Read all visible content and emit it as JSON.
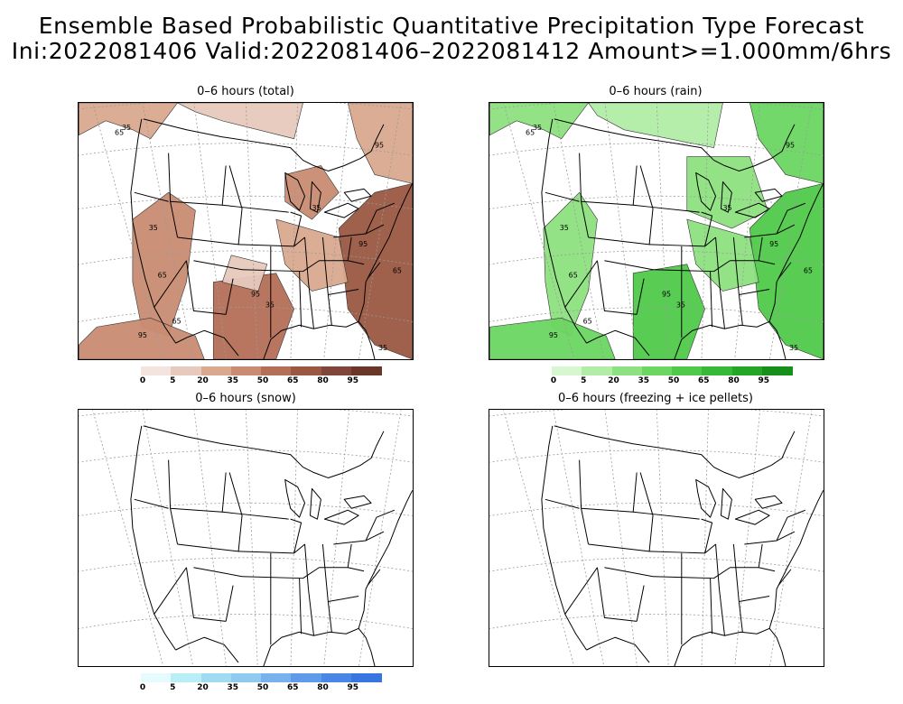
{
  "header": {
    "title": "Ensemble Based Probabilistic Quantitative Precipitation Type Forecast",
    "subtitle": "Ini:2022081406 Valid:2022081406–2022081412 Amount>=1.000mm/6hrs"
  },
  "panels": [
    {
      "id": "total",
      "title": "0–6 hours (total)",
      "contour_labels": [
        "35",
        "65",
        "95"
      ],
      "colorbar": {
        "ticks": [
          "0",
          "5",
          "20",
          "35",
          "50",
          "65",
          "80",
          "95"
        ],
        "colors": [
          "#f3e4df",
          "#e7c9bd",
          "#d9a98f",
          "#c98c72",
          "#b46f57",
          "#9a5842",
          "#80463a",
          "#6a3628"
        ]
      }
    },
    {
      "id": "rain",
      "title": "0–6 hours (rain)",
      "contour_labels": [
        "35",
        "65",
        "95"
      ],
      "colorbar": {
        "ticks": [
          "0",
          "5",
          "20",
          "35",
          "50",
          "65",
          "80",
          "95"
        ],
        "colors": [
          "#d6f7cf",
          "#b1eda7",
          "#8de180",
          "#6cd662",
          "#4fc94a",
          "#38b838",
          "#25a526",
          "#16901a"
        ]
      }
    },
    {
      "id": "snow",
      "title": "0–6 hours (snow)",
      "contour_labels": [],
      "colorbar": {
        "ticks": [
          "0",
          "5",
          "20",
          "35",
          "50",
          "65",
          "80",
          "95"
        ],
        "colors": [
          "#e5fbfd",
          "#b9eef7",
          "#9fdcf3",
          "#8fcaf0",
          "#78b2ee",
          "#5f9bea",
          "#4a86e6",
          "#3775e0"
        ]
      }
    },
    {
      "id": "freezing",
      "title": "0–6 hours (freezing + ice pellets)",
      "contour_labels": [],
      "colorbar": null
    }
  ]
}
